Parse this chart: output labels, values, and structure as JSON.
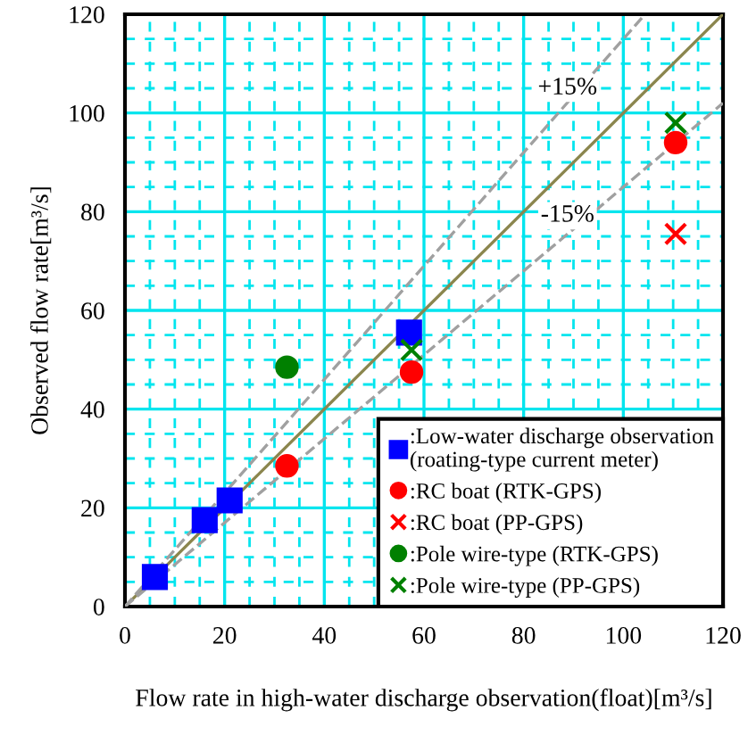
{
  "chart_data": {
    "type": "scatter",
    "xlabel": "Flow rate in high-water discharge observation(float)[m³/s]",
    "ylabel": "Observed flow rate[m³/s]",
    "xlim": [
      0,
      120
    ],
    "ylim": [
      0,
      120
    ],
    "xticks": [
      0,
      {
        "value": 5,
        "label": null
      },
      {
        "value": 10,
        "label": null
      },
      {
        "value": 15,
        "label": null
      },
      20,
      {
        "value": 25,
        "label": null
      },
      {
        "value": 30,
        "label": null
      },
      {
        "value": 35,
        "label": null
      },
      40,
      {
        "value": 45,
        "label": null
      },
      {
        "value": 50,
        "label": null
      },
      {
        "value": 55,
        "label": null
      },
      60,
      {
        "value": 65,
        "label": null
      },
      {
        "value": 70,
        "label": null
      },
      {
        "value": 75,
        "label": null
      },
      80,
      {
        "value": 85,
        "label": null
      },
      {
        "value": 90,
        "label": null
      },
      {
        "value": 95,
        "label": null
      },
      100,
      {
        "value": 105,
        "label": null
      },
      {
        "value": 110,
        "label": null
      },
      {
        "value": 115,
        "label": null
      },
      120
    ],
    "yticks": [
      0,
      {
        "value": 5,
        "label": null
      },
      {
        "value": 10,
        "label": null
      },
      {
        "value": 15,
        "label": null
      },
      20,
      {
        "value": 25,
        "label": null
      },
      {
        "value": 30,
        "label": null
      },
      {
        "value": 35,
        "label": null
      },
      40,
      {
        "value": 45,
        "label": null
      },
      {
        "value": 50,
        "label": null
      },
      {
        "value": 55,
        "label": null
      },
      60,
      {
        "value": 65,
        "label": null
      },
      {
        "value": 70,
        "label": null
      },
      {
        "value": 75,
        "label": null
      },
      80,
      {
        "value": 85,
        "label": null
      },
      {
        "value": 90,
        "label": null
      },
      {
        "value": 95,
        "label": null
      },
      100,
      {
        "value": 105,
        "label": null
      },
      {
        "value": 110,
        "label": null
      },
      {
        "value": 115,
        "label": null
      },
      120
    ],
    "grid": true,
    "legend": "bottom right",
    "series": [
      {
        "type": "line",
        "color": "#8b864e",
        "line_style": "solid",
        "marker": "none",
        "x": [
          0,
          120
        ],
        "values": [
          0,
          120
        ]
      },
      {
        "type": "line",
        "color": "#a0a0a0",
        "line_style": "dashed",
        "marker": "none",
        "x": [
          0,
          104
        ],
        "values": [
          0,
          119.6
        ]
      },
      {
        "type": "line",
        "color": "#a0a0a0",
        "line_style": "dashed",
        "marker": "none",
        "x": [
          0,
          120
        ],
        "values": [
          0,
          102
        ]
      },
      {
        "name": ":Low-water discharge observation\n(roating-type current meter)",
        "color": "#0000ff",
        "marker": "square",
        "x": [
          6,
          16,
          21,
          57
        ],
        "values": [
          6,
          17.5,
          21.5,
          55.5
        ]
      },
      {
        "name": ":RC boat (RTK-GPS)",
        "color": "#ff0000",
        "marker": "circle",
        "x": [
          32.5,
          57.5,
          110.5
        ],
        "values": [
          28.5,
          47.5,
          94
        ]
      },
      {
        "name": ":RC boat (PP-GPS)",
        "color": "#ff0000",
        "marker": "cross",
        "x": [
          110.5
        ],
        "values": [
          75.5
        ]
      },
      {
        "name": ":Pole wire-type (RTK-GPS)",
        "color": "#008000",
        "marker": "circle",
        "x": [
          32.5
        ],
        "values": [
          48.5
        ]
      },
      {
        "name": ":Pole wire-type (PP-GPS)",
        "color": "#008000",
        "marker": "cross",
        "x": [
          57.5,
          110.5
        ],
        "values": [
          52,
          98
        ]
      }
    ],
    "annotations": [
      "+15%",
      "-15%"
    ]
  }
}
